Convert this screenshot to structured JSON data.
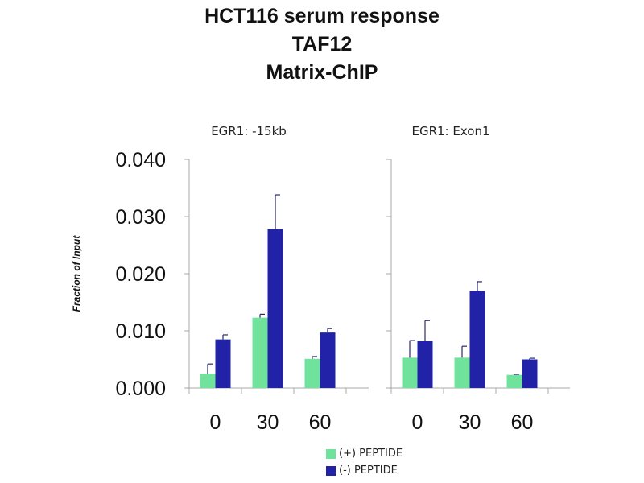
{
  "title_lines": [
    "HCT116 serum response",
    "TAF12",
    "Matrix-ChIP"
  ],
  "colors": {
    "peptide_plus": "#6fe39b",
    "peptide_minus": "#2222a8",
    "error_bar": "#2a2a6a"
  },
  "legend": [
    {
      "label": "(+) PEPTIDE",
      "color": "#6fe39b"
    },
    {
      "label": "(-) PEPTIDE",
      "color": "#2222a8"
    }
  ],
  "chart_data": {
    "type": "bar",
    "ylabel": "Fraction of Input",
    "ylim": [
      0,
      0.04
    ],
    "yticks": [
      "0.000",
      "0.010",
      "0.020",
      "0.030",
      "0.040"
    ],
    "grid": false,
    "legend_position": "bottom",
    "panels": [
      {
        "title": "EGR1: -15kb",
        "categories": [
          "0",
          "30",
          "60"
        ],
        "series": [
          {
            "name": "(+) PEPTIDE",
            "values": [
              0.0025,
              0.0123,
              0.0051
            ],
            "errors": [
              0.0017,
              0.0006,
              0.0004
            ]
          },
          {
            "name": "(-) PEPTIDE",
            "values": [
              0.0085,
              0.0278,
              0.0097
            ],
            "errors": [
              0.0008,
              0.006,
              0.0007
            ]
          }
        ]
      },
      {
        "title": "EGR1: Exon1",
        "categories": [
          "0",
          "30",
          "60"
        ],
        "series": [
          {
            "name": "(+) PEPTIDE",
            "values": [
              0.0053,
              0.0053,
              0.0023
            ],
            "errors": [
              0.003,
              0.002,
              0.0001
            ]
          },
          {
            "name": "(-) PEPTIDE",
            "values": [
              0.0082,
              0.017,
              0.005
            ],
            "errors": [
              0.0036,
              0.0016,
              0.0002
            ]
          }
        ]
      }
    ]
  }
}
